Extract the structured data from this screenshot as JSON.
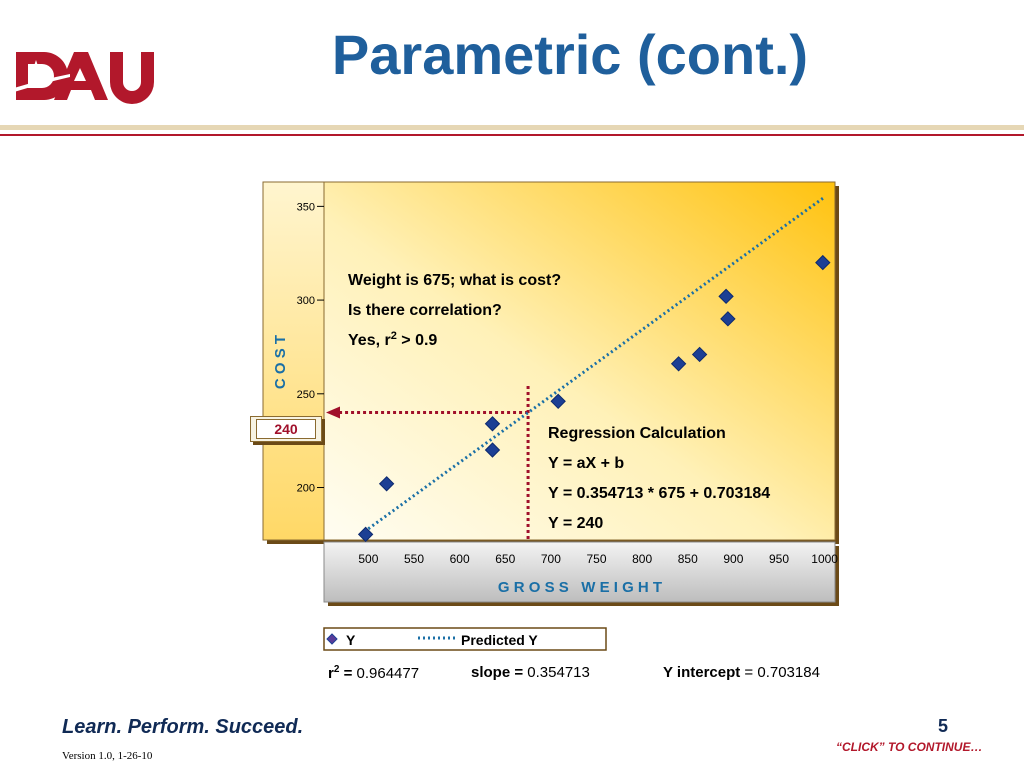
{
  "slide": {
    "title": "Parametric (cont.)",
    "logo_text": "DAU",
    "footer_tagline": "Learn. Perform. Succeed.",
    "page_number": "5",
    "version": "Version 1.0, 1-26-10",
    "continue_prompt": "“CLICK” TO CONTINUE…",
    "brand_color": "#b2182b",
    "title_color": "#1f5f9c"
  },
  "chart_data": {
    "type": "scatter",
    "xlabel": "G R O S S   W E I G H T",
    "ylabel": "C O S T",
    "xlim": [
      470,
      1030
    ],
    "ylim": [
      172,
      363
    ],
    "x_ticks": [
      500,
      550,
      600,
      650,
      700,
      750,
      800,
      850,
      900,
      950,
      1000
    ],
    "y_ticks": [
      200,
      250,
      300,
      350
    ],
    "series": [
      {
        "name": "Y",
        "marker": "diamond",
        "color": "#1c3f94",
        "points": [
          [
            497,
            175
          ],
          [
            520,
            202
          ],
          [
            636,
            234
          ],
          [
            636,
            220
          ],
          [
            708,
            246
          ],
          [
            840,
            266
          ],
          [
            863,
            271
          ],
          [
            892,
            302
          ],
          [
            894,
            290
          ],
          [
            998,
            320
          ]
        ]
      },
      {
        "name": "Predicted Y",
        "style": "dotted",
        "color": "#1a6fa6",
        "points": [
          [
            500,
            178
          ],
          [
            1000,
            355
          ]
        ]
      }
    ],
    "annotation_lines": [
      "Weight is 675; what is cost?",
      "Is there correlation?",
      "Yes, r",
      "2",
      " > 0.9"
    ],
    "regression_lines": [
      "Regression Calculation",
      "Y = aX + b",
      "Y = 0.354713 * 675 + 0.703184",
      "Y = 240"
    ],
    "lookup_x": 675,
    "lookup_y": 240,
    "lookup_label": "240",
    "stats": {
      "r2_label": "r",
      "r2_sup": "2",
      "r2_eq": " =",
      "r2_value": "0.964477",
      "slope_label": "slope =",
      "slope_value": "0.354713",
      "intercept_label": "Y intercept",
      "intercept_value": "= 0.703184"
    }
  }
}
